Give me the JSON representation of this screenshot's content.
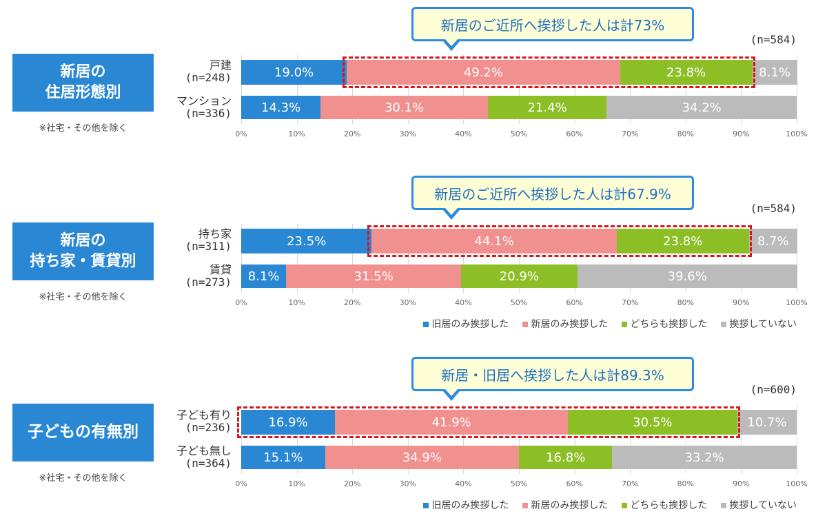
{
  "chart_data": [
    {
      "type": "bar",
      "stacked": true,
      "orientation": "horizontal",
      "title": "新居の\n住居形態別",
      "note": "※社宅・その他を除く",
      "n_total": "(n=584)",
      "callout": "新居のご近所へ挨拶した人は計73%",
      "highlight_series": [
        1,
        2
      ],
      "highlight_rows": [
        0
      ],
      "categories": [
        "戸建\n(n=248)",
        "マンション\n(n=336)"
      ],
      "series": [
        {
          "name": "旧居のみ挨拶した",
          "values": [
            19.0,
            14.3
          ]
        },
        {
          "name": "新居のみ挨拶した",
          "values": [
            49.2,
            30.1
          ]
        },
        {
          "name": "どちらも挨拶した",
          "values": [
            23.8,
            21.4
          ]
        },
        {
          "name": "挨拶していない",
          "values": [
            8.1,
            34.2
          ]
        }
      ],
      "xlim": [
        0,
        100
      ],
      "xticks": [
        "0%",
        "10%",
        "20%",
        "30%",
        "40%",
        "50%",
        "60%",
        "70%",
        "80%",
        "90%",
        "100%"
      ],
      "legend": false
    },
    {
      "type": "bar",
      "stacked": true,
      "orientation": "horizontal",
      "title": "新居の\n持ち家・賃貸別",
      "note": "※社宅・その他を除く",
      "n_total": "(n=584)",
      "callout": "新居のご近所へ挨拶した人は計67.9%",
      "highlight_series": [
        1,
        2
      ],
      "highlight_rows": [
        0
      ],
      "categories": [
        "持ち家\n(n=311)",
        "賃貸\n(n=273)"
      ],
      "series": [
        {
          "name": "旧居のみ挨拶した",
          "values": [
            23.5,
            8.1
          ]
        },
        {
          "name": "新居のみ挨拶した",
          "values": [
            44.1,
            31.5
          ]
        },
        {
          "name": "どちらも挨拶した",
          "values": [
            23.8,
            20.9
          ]
        },
        {
          "name": "挨拶していない",
          "values": [
            8.7,
            39.6
          ]
        }
      ],
      "xlim": [
        0,
        100
      ],
      "xticks": [
        "0%",
        "10%",
        "20%",
        "30%",
        "40%",
        "50%",
        "60%",
        "70%",
        "80%",
        "90%",
        "100%"
      ],
      "legend": true
    },
    {
      "type": "bar",
      "stacked": true,
      "orientation": "horizontal",
      "title": "子どもの有無別",
      "note": "※社宅・その他を除く",
      "n_total": "(n=600)",
      "callout": "新居・旧居へ挨拶した人は計89.3%",
      "highlight_series": [
        0,
        2
      ],
      "highlight_rows": [
        0
      ],
      "categories": [
        "子ども有り\n(n=236)",
        "子ども無し\n(n=364)"
      ],
      "series": [
        {
          "name": "旧居のみ挨拶した",
          "values": [
            16.9,
            15.1
          ]
        },
        {
          "name": "新居のみ挨拶した",
          "values": [
            41.9,
            34.9
          ]
        },
        {
          "name": "どちらも挨拶した",
          "values": [
            30.5,
            16.8
          ]
        },
        {
          "name": "挨拶していない",
          "values": [
            10.7,
            33.2
          ]
        }
      ],
      "xlim": [
        0,
        100
      ],
      "xticks": [
        "0%",
        "10%",
        "20%",
        "30%",
        "40%",
        "50%",
        "60%",
        "70%",
        "80%",
        "90%",
        "100%"
      ],
      "legend": true
    }
  ],
  "colors": [
    "#2a87d4",
    "#f0908f",
    "#8cbf26",
    "#bbbbbb"
  ]
}
